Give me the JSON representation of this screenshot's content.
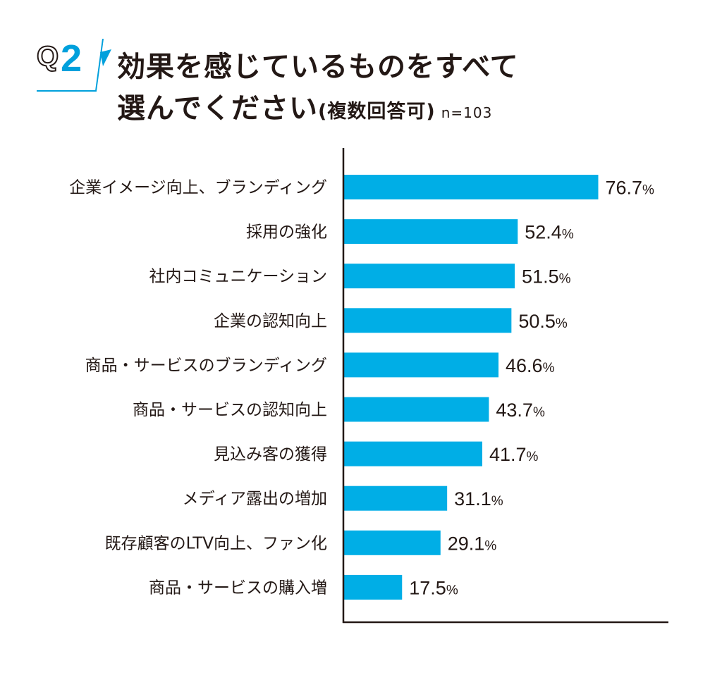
{
  "header": {
    "badge_q": "Q",
    "badge_num": "2",
    "title_line1": "効果を感じているものをすべて",
    "title_line2": "選んでください",
    "title_note": "(複数回答可)",
    "sample_size": "n=103"
  },
  "colors": {
    "bar": "#00aee6",
    "axis": "#231815",
    "accent": "#00a0dc"
  },
  "chart_data": {
    "type": "bar",
    "orientation": "horizontal",
    "categories": [
      "企業イメージ向上、ブランディング",
      "採用の強化",
      "社内コミュニケーション",
      "企業の認知向上",
      "商品・サービスのブランディング",
      "商品・サービスの認知向上",
      "見込み客の獲得",
      "メディア露出の増加",
      "既存顧客のLTV向上、ファン化",
      "商品・サービスの購入増"
    ],
    "values": [
      76.7,
      52.4,
      51.5,
      50.5,
      46.6,
      43.7,
      41.7,
      31.1,
      29.1,
      17.5
    ],
    "value_suffix": "%",
    "xlim": [
      0,
      100
    ],
    "grid": false
  }
}
